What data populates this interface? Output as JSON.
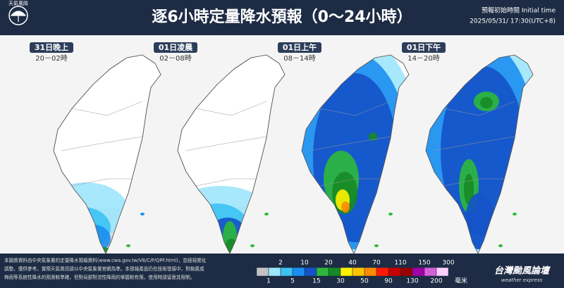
{
  "header": {
    "logo": "天氣風險",
    "title": "逐6小時定量降水預報（0～24小時）",
    "init_label": "預報初始時間 Initial time",
    "init_time": "2025/05/31/ 17:30(UTC+8)"
  },
  "panels": [
    {
      "label": "31日晚上",
      "time": "20－02時"
    },
    {
      "label": "01日凌晨",
      "time": "02－08時"
    },
    {
      "label": "01日上午",
      "time": "08－14時"
    },
    {
      "label": "01日下午",
      "time": "14－20時"
    }
  ],
  "legend": {
    "levels": [
      1,
      2,
      5,
      10,
      15,
      20,
      30,
      40,
      50,
      70,
      90,
      110,
      130,
      150,
      200,
      300
    ],
    "colors": [
      "#c4c4c4",
      "#9fe6fc",
      "#3cc2f4",
      "#1c8ef0",
      "#1452c8",
      "#2db83b",
      "#168a25",
      "#fff200",
      "#ffc400",
      "#ff8a00",
      "#ff1a00",
      "#c80000",
      "#9a0000",
      "#a000a8",
      "#d660d8",
      "#ffd0ff"
    ],
    "unit": "毫米"
  },
  "footer": {
    "lines": [
      "本圖資資料由中央氣象署的定量降水預報資料(www.cwa.gov.tw/V8/C/P/QPF.html)，並經視覺化",
      "調整，僅供參考。實際天氣資訊請以中央氣象署官網為準。本預報產品仍在技術發展中，對颱風或",
      "梅雨等系統性降水的預測較準確，但對局部對流性降雨的掌握較有限，使用時請留意其限制。"
    ],
    "brand": "台灣颱風論壇",
    "brand_sub": "weather express"
  }
}
